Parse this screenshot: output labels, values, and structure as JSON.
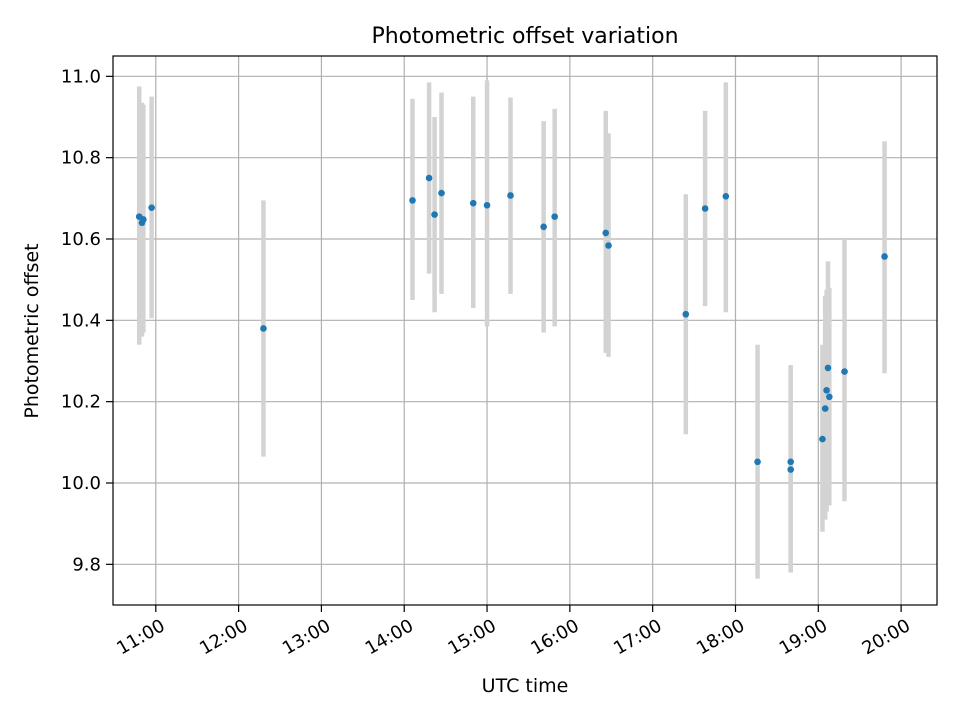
{
  "chart_data": {
    "type": "scatter",
    "title": "Photometric offset variation",
    "xlabel": "UTC time",
    "ylabel": "Photometric offset",
    "xlim": [
      "10:29",
      "20:26"
    ],
    "ylim": [
      9.7,
      11.05
    ],
    "grid": true,
    "x_ticks": [
      "11:00",
      "12:00",
      "13:00",
      "14:00",
      "15:00",
      "16:00",
      "17:00",
      "18:00",
      "19:00",
      "20:00"
    ],
    "y_ticks": [
      9.8,
      10.0,
      10.2,
      10.4,
      10.6,
      10.8,
      11.0
    ],
    "y_tick_labels": [
      "9.8",
      "10.0",
      "10.2",
      "10.4",
      "10.6",
      "10.8",
      "11.0"
    ],
    "points": [
      {
        "time": "10:48",
        "value": 10.655,
        "err_low": 10.34,
        "err_high": 10.975
      },
      {
        "time": "10:50",
        "value": 10.64,
        "err_low": 10.36,
        "err_high": 10.935
      },
      {
        "time": "10:51",
        "value": 10.648,
        "err_low": 10.37,
        "err_high": 10.93
      },
      {
        "time": "10:57",
        "value": 10.677,
        "err_low": 10.405,
        "err_high": 10.95
      },
      {
        "time": "12:18",
        "value": 10.38,
        "err_low": 10.065,
        "err_high": 10.695
      },
      {
        "time": "14:06",
        "value": 10.695,
        "err_low": 10.45,
        "err_high": 10.945
      },
      {
        "time": "14:18",
        "value": 10.75,
        "err_low": 10.515,
        "err_high": 10.985
      },
      {
        "time": "14:22",
        "value": 10.66,
        "err_low": 10.42,
        "err_high": 10.9
      },
      {
        "time": "14:27",
        "value": 10.713,
        "err_low": 10.465,
        "err_high": 10.96
      },
      {
        "time": "14:50",
        "value": 10.688,
        "err_low": 10.43,
        "err_high": 10.95
      },
      {
        "time": "15:00",
        "value": 10.683,
        "err_low": 10.385,
        "err_high": 10.99
      },
      {
        "time": "15:17",
        "value": 10.707,
        "err_low": 10.465,
        "err_high": 10.948
      },
      {
        "time": "15:41",
        "value": 10.63,
        "err_low": 10.37,
        "err_high": 10.89
      },
      {
        "time": "15:49",
        "value": 10.655,
        "err_low": 10.385,
        "err_high": 10.92
      },
      {
        "time": "16:26",
        "value": 10.615,
        "err_low": 10.32,
        "err_high": 10.915
      },
      {
        "time": "16:28",
        "value": 10.584,
        "err_low": 10.31,
        "err_high": 10.86
      },
      {
        "time": "17:24",
        "value": 10.415,
        "err_low": 10.12,
        "err_high": 10.71
      },
      {
        "time": "17:38",
        "value": 10.675,
        "err_low": 10.435,
        "err_high": 10.915
      },
      {
        "time": "17:53",
        "value": 10.705,
        "err_low": 10.42,
        "err_high": 10.985
      },
      {
        "time": "18:16",
        "value": 10.052,
        "err_low": 9.765,
        "err_high": 10.34
      },
      {
        "time": "18:40",
        "value": 10.052,
        "err_low": 9.78,
        "err_high": 10.29
      },
      {
        "time": "18:40",
        "value": 10.033,
        "err_low": 9.78,
        "err_high": 10.29
      },
      {
        "time": "19:03",
        "value": 10.108,
        "err_low": 9.88,
        "err_high": 10.34
      },
      {
        "time": "19:05",
        "value": 10.183,
        "err_low": 9.91,
        "err_high": 10.46
      },
      {
        "time": "19:06",
        "value": 10.228,
        "err_low": 9.93,
        "err_high": 10.475
      },
      {
        "time": "19:07",
        "value": 10.283,
        "err_low": 10.02,
        "err_high": 10.545
      },
      {
        "time": "19:08",
        "value": 10.212,
        "err_low": 9.945,
        "err_high": 10.48
      },
      {
        "time": "19:19",
        "value": 10.274,
        "err_low": 9.955,
        "err_high": 10.6
      },
      {
        "time": "19:48",
        "value": 10.557,
        "err_low": 10.27,
        "err_high": 10.84
      }
    ],
    "colors": {
      "marker": "#1f77b4",
      "errorbar": "#d3d3d3",
      "grid": "#b0b0b0"
    }
  }
}
